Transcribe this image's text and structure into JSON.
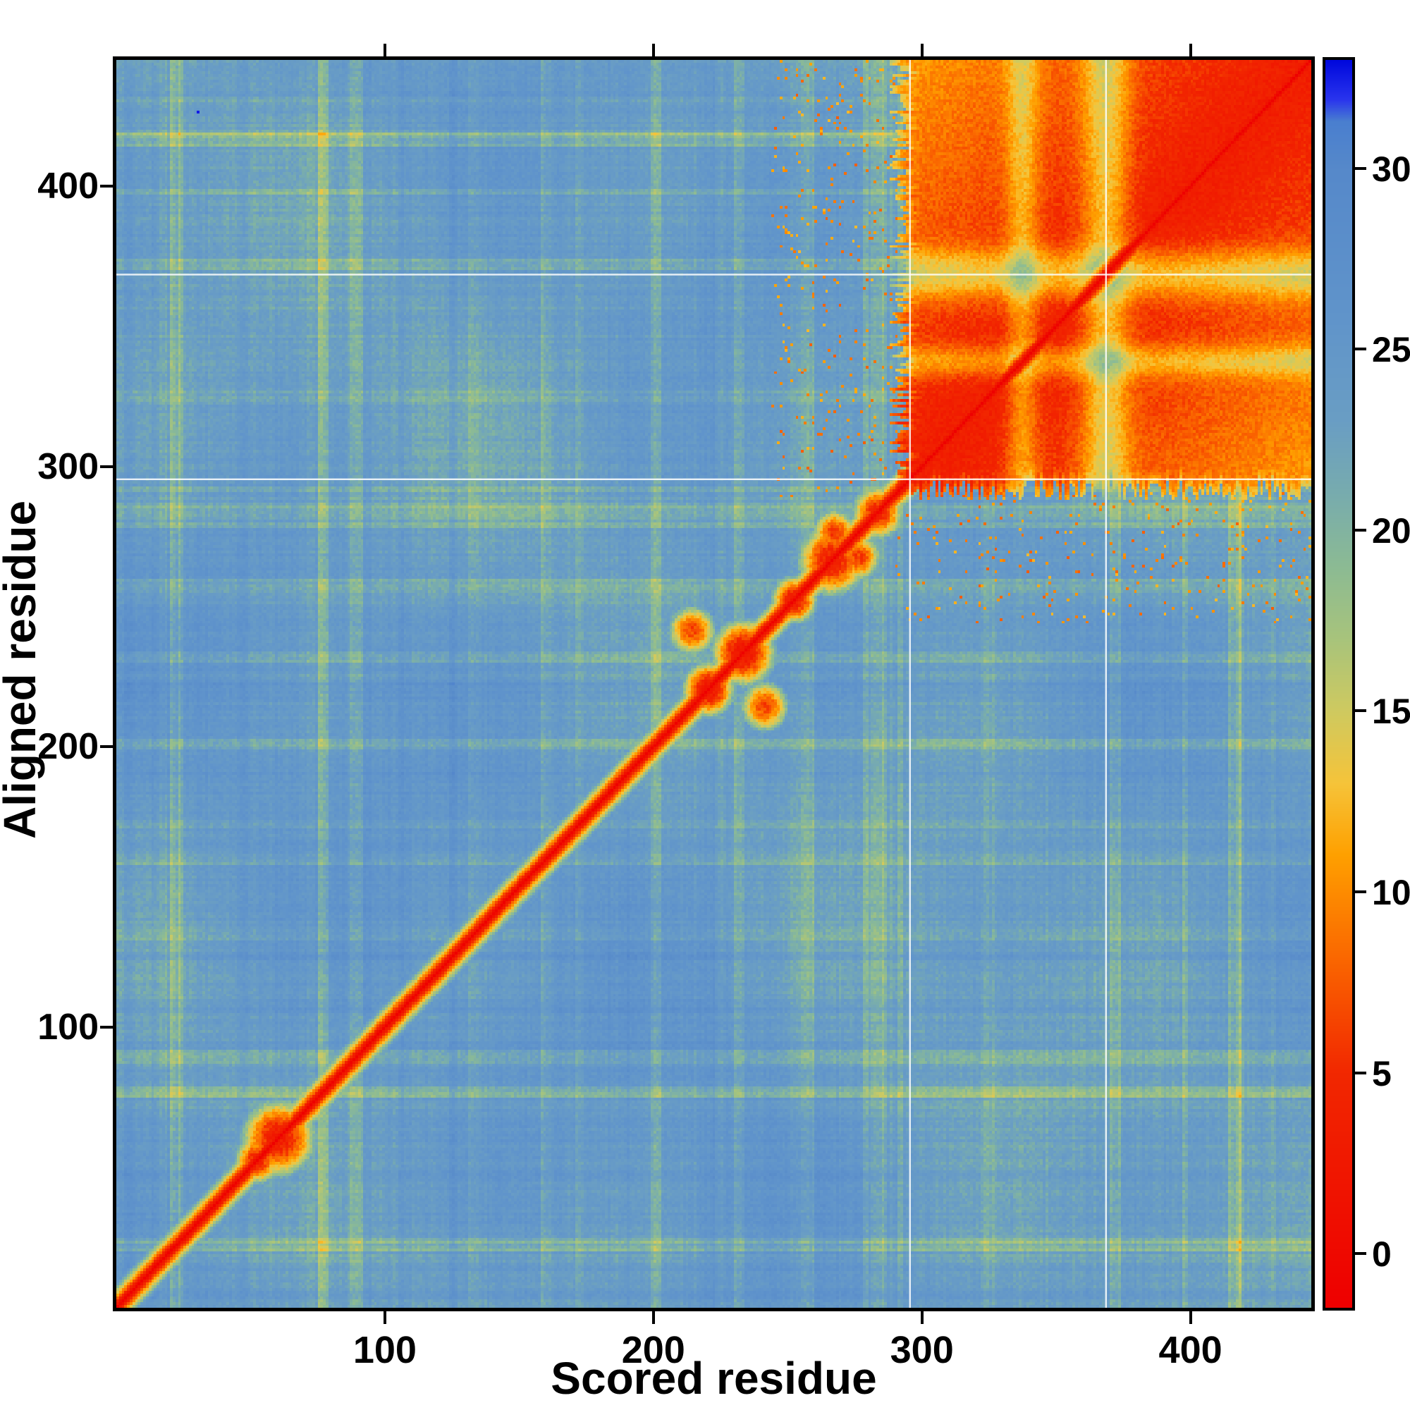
{
  "chart_data": {
    "type": "heatmap",
    "title": "",
    "xlabel": "Scored residue",
    "ylabel": "Aligned residue",
    "x_range": [
      0,
      445
    ],
    "y_range": [
      0,
      445
    ],
    "x_ticks": [
      100,
      200,
      300,
      400
    ],
    "y_ticks": [
      100,
      200,
      300,
      400
    ],
    "grid": false,
    "legend": "colorbar-right",
    "colorbar": {
      "ticks": [
        0,
        5,
        10,
        15,
        20,
        25,
        30
      ],
      "domain": [
        -1.5,
        33
      ]
    },
    "colormap_stops": [
      [
        -1.5,
        "#ee0000"
      ],
      [
        5,
        "#f22800"
      ],
      [
        8,
        "#fa6400"
      ],
      [
        11,
        "#ffa000"
      ],
      [
        13,
        "#f6c43a"
      ],
      [
        15,
        "#cfca60"
      ],
      [
        17,
        "#a8c47c"
      ],
      [
        19,
        "#8cbb94"
      ],
      [
        21,
        "#78acae"
      ],
      [
        23,
        "#6a9ec4"
      ],
      [
        26,
        "#6094cb"
      ],
      [
        30,
        "#5689ca"
      ],
      [
        31.3,
        "#4a7fd0"
      ],
      [
        31.9,
        "#2a35ee"
      ],
      [
        33,
        "#0008dd"
      ]
    ],
    "features": {
      "background_value": 24.3,
      "diagonal": {
        "core_value": -1.5,
        "slope_per_residue": 3.0
      },
      "diagonal_blobs": [
        {
          "x": 52,
          "y": 52,
          "r": 8,
          "v": 4
        },
        {
          "x": 60,
          "y": 60,
          "r": 13,
          "v": 3
        },
        {
          "x": 220,
          "y": 220,
          "r": 9,
          "v": 2
        },
        {
          "x": 233,
          "y": 233,
          "r": 11,
          "v": 2
        },
        {
          "x": 214,
          "y": 241,
          "r": 9,
          "v": 6.5
        },
        {
          "x": 241,
          "y": 214,
          "r": 9,
          "v": 6.5
        },
        {
          "x": 252,
          "y": 252,
          "r": 8,
          "v": 3
        },
        {
          "x": 266,
          "y": 266,
          "r": 12,
          "v": 3.5
        },
        {
          "x": 276,
          "y": 267,
          "r": 8,
          "v": 6
        },
        {
          "x": 267,
          "y": 276,
          "r": 8,
          "v": 6
        },
        {
          "x": 283,
          "y": 283,
          "r": 9,
          "v": 4
        }
      ],
      "domain_block": {
        "start": 291,
        "end": 445,
        "base_value": 3.2,
        "distance_gradient": 0.05,
        "gaps": [
          {
            "center": 337,
            "sigma": 6,
            "delta": 6
          },
          {
            "center": 368,
            "sigma": 9,
            "delta": 8
          }
        ]
      },
      "missing_residue_lines": [
        295,
        368
      ],
      "outlier_dots": [
        {
          "x": 30,
          "y": 426,
          "v": 32.5
        }
      ]
    }
  }
}
